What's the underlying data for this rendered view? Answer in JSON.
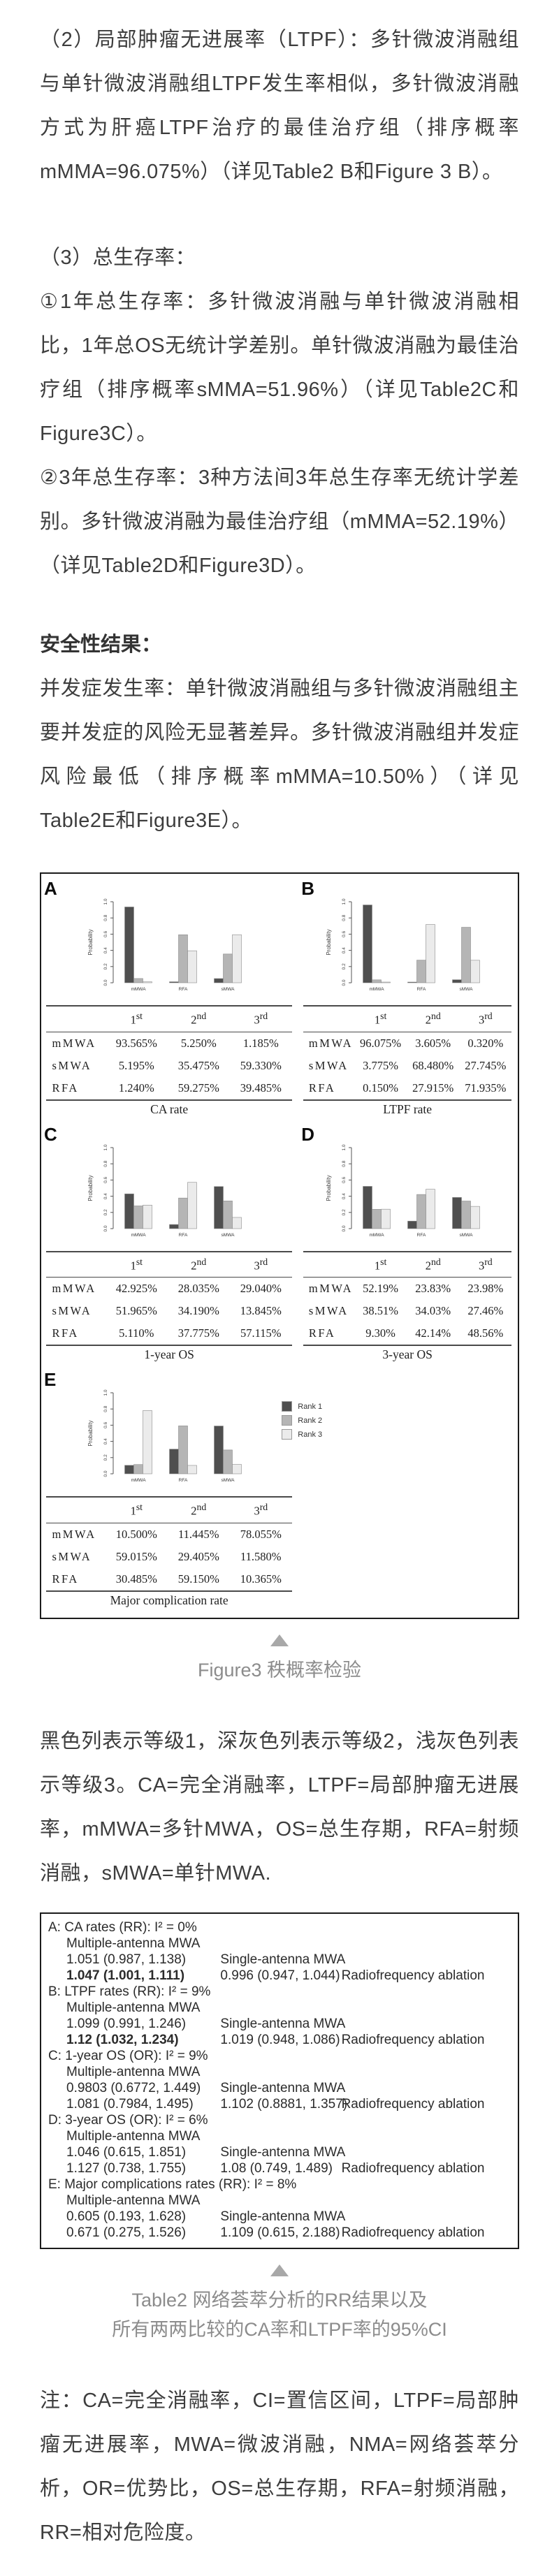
{
  "article": {
    "p_ltpf": "（2）局部肿瘤无进展率（LTPF）：多针微波消融组与单针微波消融组LTPF发生率相似，多针微波消融方式为肝癌LTPF治疗的最佳治疗组（排序概率mMMA=96.075%）（详见Table2 B和Figure 3 B）。",
    "p_os_heading": "（3）总生存率：",
    "p_os_1yr": "①1年总生存率：多针微波消融与单针微波消融相比，1年总OS无统计学差别。单针微波消融为最佳治疗组（排序概率sMMA=51.96%）（详见Table2C和Figure3C）。",
    "p_os_3yr": "②3年总生存率：3种方法间3年总生存率无统计学差别。多针微波消融为最佳治疗组（mMMA=52.19%）（详见Table2D和Figure3D）。",
    "safety_heading": "安全性结果：",
    "p_safety": "并发症发生率：单针微波消融组与多针微波消融组主要并发症的风险无显著差异。多针微波消融组并发症风险最低（排序概率mMMA=10.50%）（详见Table2E和Figure3E）。",
    "bottom_note": "注：CA=完全消融率，CI=置信区间，LTPF=局部肿瘤无进展率，MWA=微波消融，NMA=网络荟萃分析，OR=优势比，OS=总生存期，RFA=射频消融，RR=相对危险度。"
  },
  "figure": {
    "caption": "Figure3 秩概率检验",
    "note": "黑色列表示等级1，深灰色列表示等级2，浅灰色列表示等级3。CA=完全消融率，LTPF=局部肿瘤无进展率，mMWA=多针MWA，OS=总生存期，RFA=射频消融，sMWA=单针MWA.",
    "ylabel": "Probability",
    "yticks": [
      "0.0",
      "0.2",
      "0.4",
      "0.6",
      "0.8",
      "1.0"
    ],
    "group_order": [
      "mMWA",
      "RFA",
      "sMWA"
    ],
    "columns": [
      {
        "n": "1",
        "s": "st"
      },
      {
        "n": "2",
        "s": "nd"
      },
      {
        "n": "3",
        "s": "rd"
      }
    ],
    "legend": [
      {
        "label": "Rank 1",
        "color": "#4f4f4f"
      },
      {
        "label": "Rank 2",
        "color": "#b5b5b5"
      },
      {
        "label": "Rank 3",
        "color": "#ebebeb"
      }
    ],
    "chart_data": [
      {
        "type": "bar",
        "panel": "A",
        "title": "CA rate",
        "categories": [
          "mMWA",
          "RFA",
          "sMWA"
        ],
        "ylim": [
          0,
          1
        ],
        "rows": [
          {
            "label": "mMWA",
            "values": [
              "93.565%",
              "5.250%",
              "1.185%"
            ]
          },
          {
            "label": "sMWA",
            "values": [
              "5.195%",
              "35.475%",
              "59.330%"
            ]
          },
          {
            "label": "RFA",
            "values": [
              "1.240%",
              "59.275%",
              "39.485%"
            ]
          }
        ]
      },
      {
        "type": "bar",
        "panel": "B",
        "title": "LTPF rate",
        "categories": [
          "mMWA",
          "RFA",
          "sMWA"
        ],
        "ylim": [
          0,
          1
        ],
        "rows": [
          {
            "label": "mMWA",
            "values": [
              "96.075%",
              "3.605%",
              "0.320%"
            ]
          },
          {
            "label": "sMWA",
            "values": [
              "3.775%",
              "68.480%",
              "27.745%"
            ]
          },
          {
            "label": "RFA",
            "values": [
              "0.150%",
              "27.915%",
              "71.935%"
            ]
          }
        ]
      },
      {
        "type": "bar",
        "panel": "C",
        "title": "1-year OS",
        "categories": [
          "mMWA",
          "RFA",
          "sMWA"
        ],
        "ylim": [
          0,
          1
        ],
        "rows": [
          {
            "label": "mMWA",
            "values": [
              "42.925%",
              "28.035%",
              "29.040%"
            ]
          },
          {
            "label": "sMWA",
            "values": [
              "51.965%",
              "34.190%",
              "13.845%"
            ]
          },
          {
            "label": "RFA",
            "values": [
              "5.110%",
              "37.775%",
              "57.115%"
            ]
          }
        ]
      },
      {
        "type": "bar",
        "panel": "D",
        "title": "3-year OS",
        "categories": [
          "mMWA",
          "RFA",
          "sMWA"
        ],
        "ylim": [
          0,
          1
        ],
        "rows": [
          {
            "label": "mMWA",
            "values": [
              "52.19%",
              "23.83%",
              "23.98%"
            ]
          },
          {
            "label": "sMWA",
            "values": [
              "38.51%",
              "34.03%",
              "27.46%"
            ]
          },
          {
            "label": "RFA",
            "values": [
              "9.30%",
              "42.14%",
              "48.56%"
            ]
          }
        ]
      },
      {
        "type": "bar",
        "panel": "E",
        "title": "Major complication rate",
        "categories": [
          "mMWA",
          "RFA",
          "sMWA"
        ],
        "ylim": [
          0,
          1
        ],
        "rows": [
          {
            "label": "mMWA",
            "values": [
              "10.500%",
              "11.445%",
              "78.055%"
            ]
          },
          {
            "label": "sMWA",
            "values": [
              "59.015%",
              "29.405%",
              "11.580%"
            ]
          },
          {
            "label": "RFA",
            "values": [
              "30.485%",
              "59.150%",
              "10.365%"
            ]
          }
        ]
      }
    ]
  },
  "table2": {
    "caption1": "Table2 网络荟萃分析的RR结果以及",
    "caption2": "所有两两比较的CA率和LTPF率的95%CI",
    "blocks": [
      {
        "header": "A: CA rates (RR): I² = 0%",
        "l1": "Multiple-antenna MWA",
        "v11": "1.051 (0.987, 1.138)",
        "mid": "Single-antenna MWA",
        "v21": "1.047 (1.001, 1.111)",
        "v21_bold": true,
        "v22": "0.996 (0.947, 1.044)",
        "right": "Radiofrequency ablation"
      },
      {
        "header": "B: LTPF rates (RR): I² = 9%",
        "l1": "Multiple-antenna MWA",
        "v11": "1.099 (0.991, 1.246)",
        "mid": "Single-antenna MWA",
        "v21": "1.12 (1.032, 1.234)",
        "v21_bold": true,
        "v22": "1.019 (0.948, 1.086)",
        "right": "Radiofrequency ablation"
      },
      {
        "header": "C: 1-year OS (OR): I² = 9%",
        "l1": "Multiple-antenna MWA",
        "v11": "0.9803 (0.6772, 1.449)",
        "mid": "Single-antenna MWA",
        "v21": "1.081 (0.7984, 1.495)",
        "v21_bold": false,
        "v22": "1.102 (0.8881, 1.357)",
        "right": "Radiofrequency ablation"
      },
      {
        "header": "D: 3-year OS (OR): I² = 6%",
        "l1": "Multiple-antenna MWA",
        "v11": "1.046 (0.615, 1.851)",
        "mid": "Single-antenna MWA",
        "v21": "1.127 (0.738, 1.755)",
        "v21_bold": false,
        "v22": "1.08 (0.749, 1.489)",
        "right": "Radiofrequency ablation"
      },
      {
        "header": "E: Major complications rates (RR): I² = 8%",
        "l1": "Multiple-antenna MWA",
        "v11": "0.605 (0.193, 1.628)",
        "mid": "Single-antenna MWA",
        "v21": "0.671 (0.275, 1.526)",
        "v21_bold": false,
        "v22": "1.109 (0.615, 2.188)",
        "right": "Radiofrequency ablation"
      }
    ]
  }
}
